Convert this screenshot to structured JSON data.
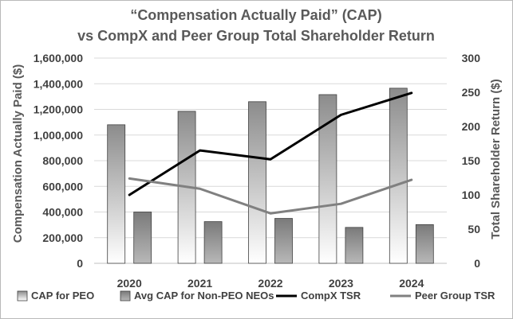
{
  "chart_data": {
    "type": "bar",
    "title": "“Compensation Actually Paid” (CAP)",
    "subtitle": "vs CompX and Peer Group Total Shareholder Return",
    "categories": [
      "2020",
      "2021",
      "2022",
      "2023",
      "2024"
    ],
    "y_left": {
      "label": "Compensation Actually Paid ($)",
      "range": [
        0,
        1600000
      ],
      "ticks": [
        "0",
        "200,000",
        "400,000",
        "600,000",
        "800,000",
        "1,000,000",
        "1,200,000",
        "1,400,000",
        "1,600,000"
      ]
    },
    "y_right": {
      "label": "Total Shareholder Return ($)",
      "range": [
        0,
        300
      ],
      "ticks": [
        "0",
        "50",
        "100",
        "150",
        "200",
        "250",
        "300"
      ]
    },
    "grid": true,
    "legend_position": "bottom",
    "series": [
      {
        "name": "CAP for PEO",
        "kind": "bar",
        "axis": "left",
        "values": [
          1080000,
          1185000,
          1260000,
          1315000,
          1365000
        ],
        "color": "#a6a6a6"
      },
      {
        "name": "Avg CAP for Non-PEO NEOs",
        "kind": "bar",
        "axis": "left",
        "values": [
          400000,
          325000,
          350000,
          280000,
          302000
        ],
        "color": "#808080"
      },
      {
        "name": "CompX TSR",
        "kind": "line",
        "axis": "right",
        "values": [
          100,
          165,
          152,
          217,
          249
        ],
        "color": "#000000"
      },
      {
        "name": "Peer Group TSR",
        "kind": "line",
        "axis": "right",
        "values": [
          124,
          109,
          73,
          87,
          122
        ],
        "color": "#808080"
      }
    ]
  }
}
